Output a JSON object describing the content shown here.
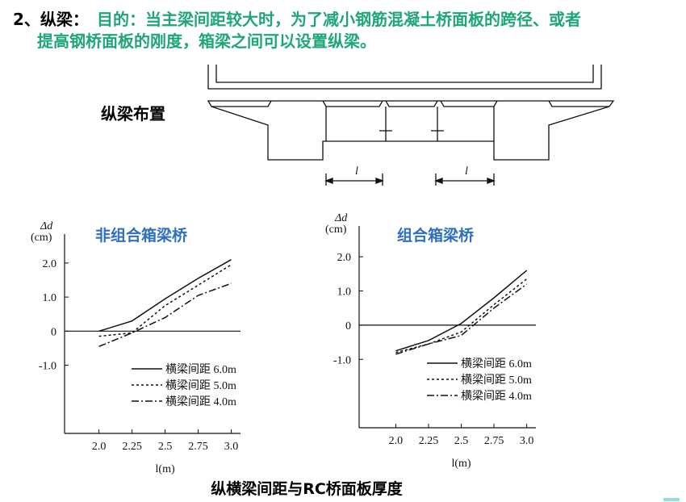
{
  "heading": {
    "prefix": "2、纵梁：",
    "lines": [
      "目的：当主梁间距较大时，为了减小钢筋混凝土桥面板的跨径、或者",
      "提高钢桥面板的刚度，箱梁之间可以设置纵梁。"
    ]
  },
  "diagram": {
    "label": "纵梁布置",
    "span_labels": [
      "l",
      "l"
    ]
  },
  "caption": "纵横梁间距与RC桥面板厚度",
  "chart_data": [
    {
      "type": "line",
      "title": "非组合箱梁桥",
      "ylabel": "Δd",
      "yunit": "(cm)",
      "xlabel": "l(m)",
      "x": [
        2.0,
        2.25,
        2.5,
        2.75,
        3.0
      ],
      "xlim": [
        1.74,
        3.07
      ],
      "ylim": [
        -3.0,
        2.85
      ],
      "xticks": [
        {
          "value": 2,
          "label": "2.0"
        },
        2.25,
        2.5,
        2.75,
        {
          "value": 3,
          "label": "3.0"
        }
      ],
      "yticks": [
        {
          "value": 2,
          "label": "2.0"
        },
        {
          "value": 1,
          "label": "1.0"
        },
        0,
        {
          "value": -1,
          "label": "-1.0"
        }
      ],
      "series": [
        {
          "name": "横梁间距 6.0m",
          "color": "#111111",
          "dash": "solid",
          "values": [
            0,
            0.3,
            0.95,
            1.55,
            2.1
          ]
        },
        {
          "name": "横梁间距 5.0m",
          "color": "#111111",
          "dash": "dashed",
          "values": [
            -0.15,
            -0.05,
            0.75,
            1.35,
            1.95
          ]
        },
        {
          "name": "横梁间距 4.0m",
          "color": "#111111",
          "dash": "dashdot",
          "values": [
            -0.45,
            -0.05,
            0.4,
            1.05,
            1.4
          ]
        }
      ]
    },
    {
      "type": "line",
      "title": "组合箱梁桥",
      "ylabel": "Δd",
      "yunit": "(cm)",
      "xlabel": "l(m)",
      "x": [
        2.0,
        2.25,
        2.5,
        2.75,
        3.0
      ],
      "xlim": [
        1.72,
        3.07
      ],
      "ylim": [
        -3.0,
        2.9
      ],
      "xticks": [
        {
          "value": 2,
          "label": "2.0"
        },
        2.25,
        2.5,
        2.75,
        {
          "value": 3,
          "label": "3.0"
        }
      ],
      "yticks": [
        {
          "value": 2,
          "label": "2.0"
        },
        {
          "value": 1,
          "label": "1.0"
        },
        0,
        {
          "value": -1,
          "label": "-1.0"
        }
      ],
      "series": [
        {
          "name": "横梁间距 6.0m",
          "color": "#111111",
          "dash": "solid",
          "values": [
            -0.75,
            -0.45,
            0.05,
            0.8,
            1.6
          ]
        },
        {
          "name": "横梁间距 5.0m",
          "color": "#111111",
          "dash": "dashed",
          "values": [
            -0.8,
            -0.55,
            -0.2,
            0.6,
            1.35
          ]
        },
        {
          "name": "横梁间距 4.0m",
          "color": "#111111",
          "dash": "dashdot",
          "values": [
            -0.85,
            -0.55,
            -0.3,
            0.5,
            1.2
          ]
        }
      ]
    }
  ]
}
